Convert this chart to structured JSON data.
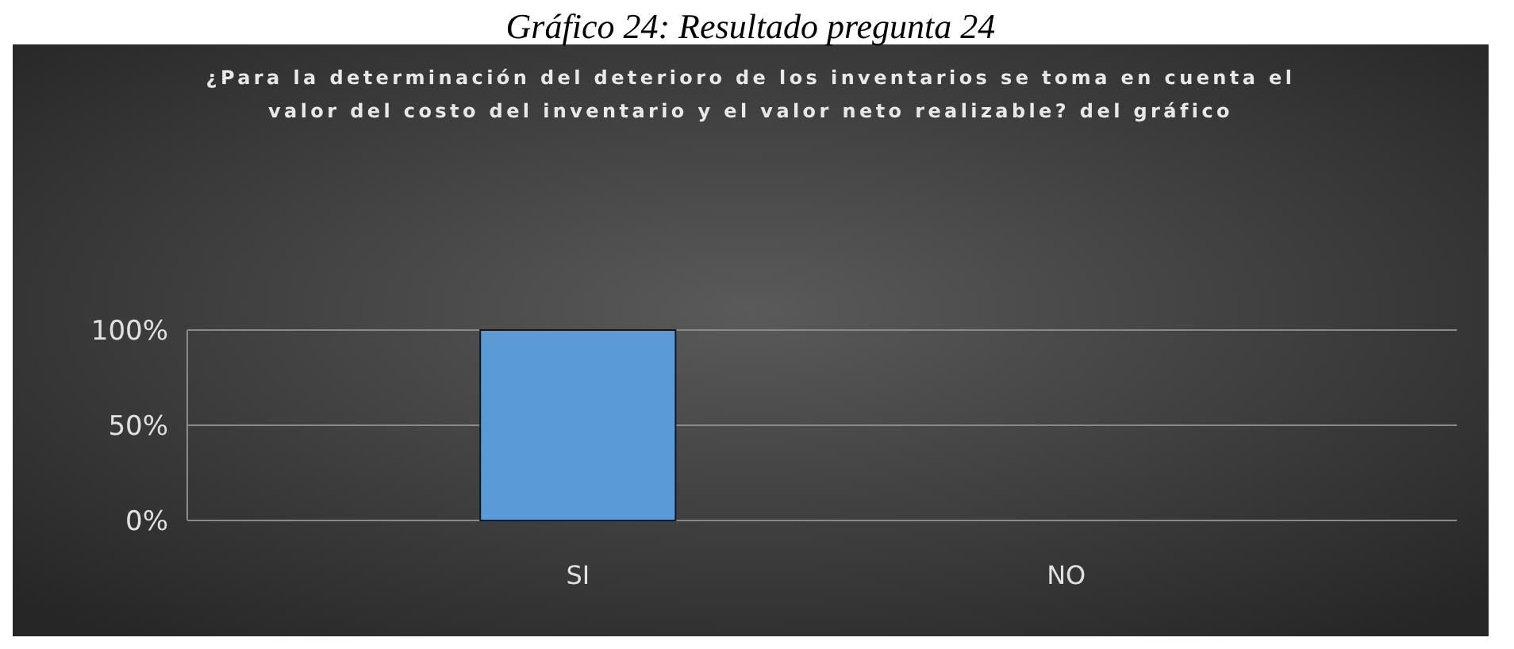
{
  "chart_data": {
    "type": "bar",
    "title": "¿Para la determinación del deterioro de los inventarios se toma en cuenta el valor del costo del inventario y el valor neto realizable? del gráfico",
    "annotations": [
      "Gráfico 24: Resultado pregunta 24"
    ],
    "categories": [
      "SI",
      "NO"
    ],
    "values": [
      100,
      0
    ],
    "colors": [
      "#5b9bd5",
      "#1f3550"
    ],
    "ylim": [
      0,
      100
    ],
    "yticks": [
      {
        "value": 0,
        "label": "0%"
      },
      {
        "value": 50,
        "label": "50%"
      },
      {
        "value": 100,
        "label": "100%"
      }
    ],
    "grid": "y"
  }
}
